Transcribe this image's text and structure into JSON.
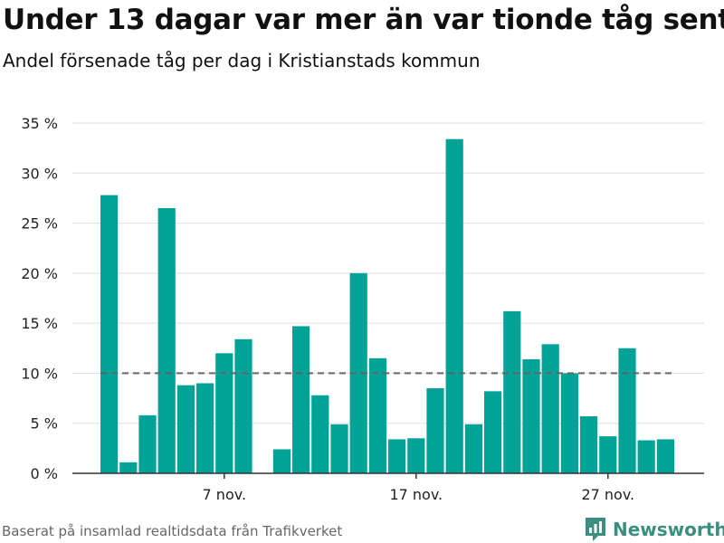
{
  "title": "Under 13 dagar var mer än var tionde tåg sent",
  "subtitle": "Andel försenade tåg per dag i Kristianstads kommun",
  "source": "Baserat på insamlad realtidsdata från Trafikverket",
  "brand": "Newsworthy",
  "colors": {
    "bar": "#00a396",
    "reference_line": "#666666",
    "grid": "#dddddd",
    "brand": "#3c8f80"
  },
  "chart_data": {
    "type": "bar",
    "title": "Under 13 dagar var mer än var tionde tåg sent",
    "subtitle": "Andel försenade tåg per dag i Kristianstads kommun",
    "xlabel": "",
    "ylabel": "",
    "ylim": [
      0,
      35
    ],
    "y_ticks": [
      0,
      5,
      10,
      15,
      20,
      25,
      30,
      35
    ],
    "y_tick_labels": [
      "0 %",
      "5 %",
      "10 %",
      "15 %",
      "20 %",
      "25 %",
      "30 %",
      "35 %"
    ],
    "x_tick_days": [
      7,
      17,
      27
    ],
    "x_tick_labels": [
      "7 nov.",
      "17 nov.",
      "27 nov."
    ],
    "grid": true,
    "reference_line": 10,
    "days": [
      1,
      2,
      3,
      4,
      5,
      6,
      7,
      8,
      9,
      10,
      11,
      12,
      13,
      14,
      15,
      16,
      17,
      18,
      19,
      20,
      21,
      22,
      23,
      24,
      25,
      26,
      27,
      28,
      29,
      30
    ],
    "values": [
      27.8,
      1.1,
      5.8,
      26.5,
      8.8,
      9.0,
      12.0,
      13.4,
      null,
      2.4,
      14.7,
      7.8,
      4.9,
      20.0,
      11.5,
      3.4,
      3.5,
      8.5,
      33.4,
      4.9,
      8.2,
      16.2,
      11.4,
      12.9,
      10.0,
      5.7,
      3.7,
      12.5,
      3.3,
      3.4
    ]
  }
}
